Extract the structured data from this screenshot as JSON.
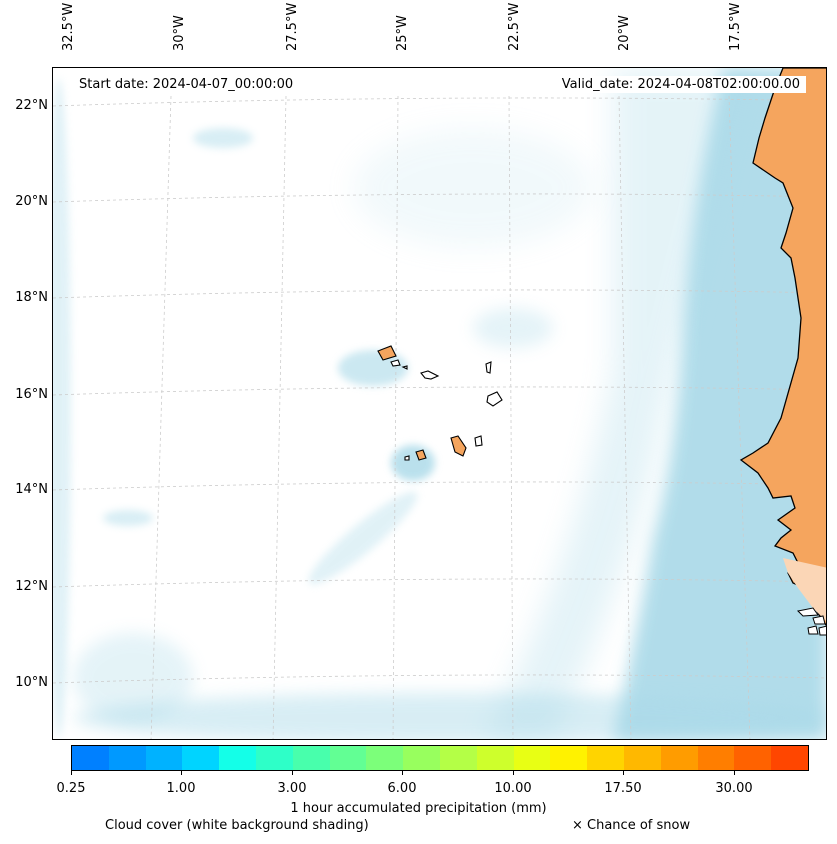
{
  "map": {
    "start_date": "Start date: 2024-04-07_00:00:00",
    "valid_date": "Valid_date: 2024-04-08T02:00:00.00",
    "longitude_labels": [
      "32.5°W",
      "30°W",
      "27.5°W",
      "25°W",
      "22.5°W",
      "20°W",
      "17.5°W"
    ],
    "latitude_labels": [
      "22°N",
      "20°N",
      "18°N",
      "16°N",
      "14°N",
      "12°N",
      "10°N"
    ],
    "land_color": "#f5a55e",
    "cloud_color": "#a9d9e8"
  },
  "colorbar": {
    "label": "1 hour accumulated precipitation (mm)",
    "tick_labels": [
      "0.25",
      "1.00",
      "3.00",
      "6.00",
      "10.00",
      "17.50",
      "30.00"
    ],
    "colors": [
      "#0080ff",
      "#0099ff",
      "#00b2ff",
      "#00d4ff",
      "#14ffe8",
      "#2effc8",
      "#48ffac",
      "#62ff94",
      "#7cff7a",
      "#98ff5e",
      "#b4ff46",
      "#ceff2c",
      "#e8ff14",
      "#fff200",
      "#ffd400",
      "#ffb800",
      "#ff9c00",
      "#ff7e00",
      "#ff6200",
      "#ff4600"
    ]
  },
  "legend": {
    "cloud_cover": "Cloud cover (white background shading)",
    "snow": "× Chance of snow"
  }
}
